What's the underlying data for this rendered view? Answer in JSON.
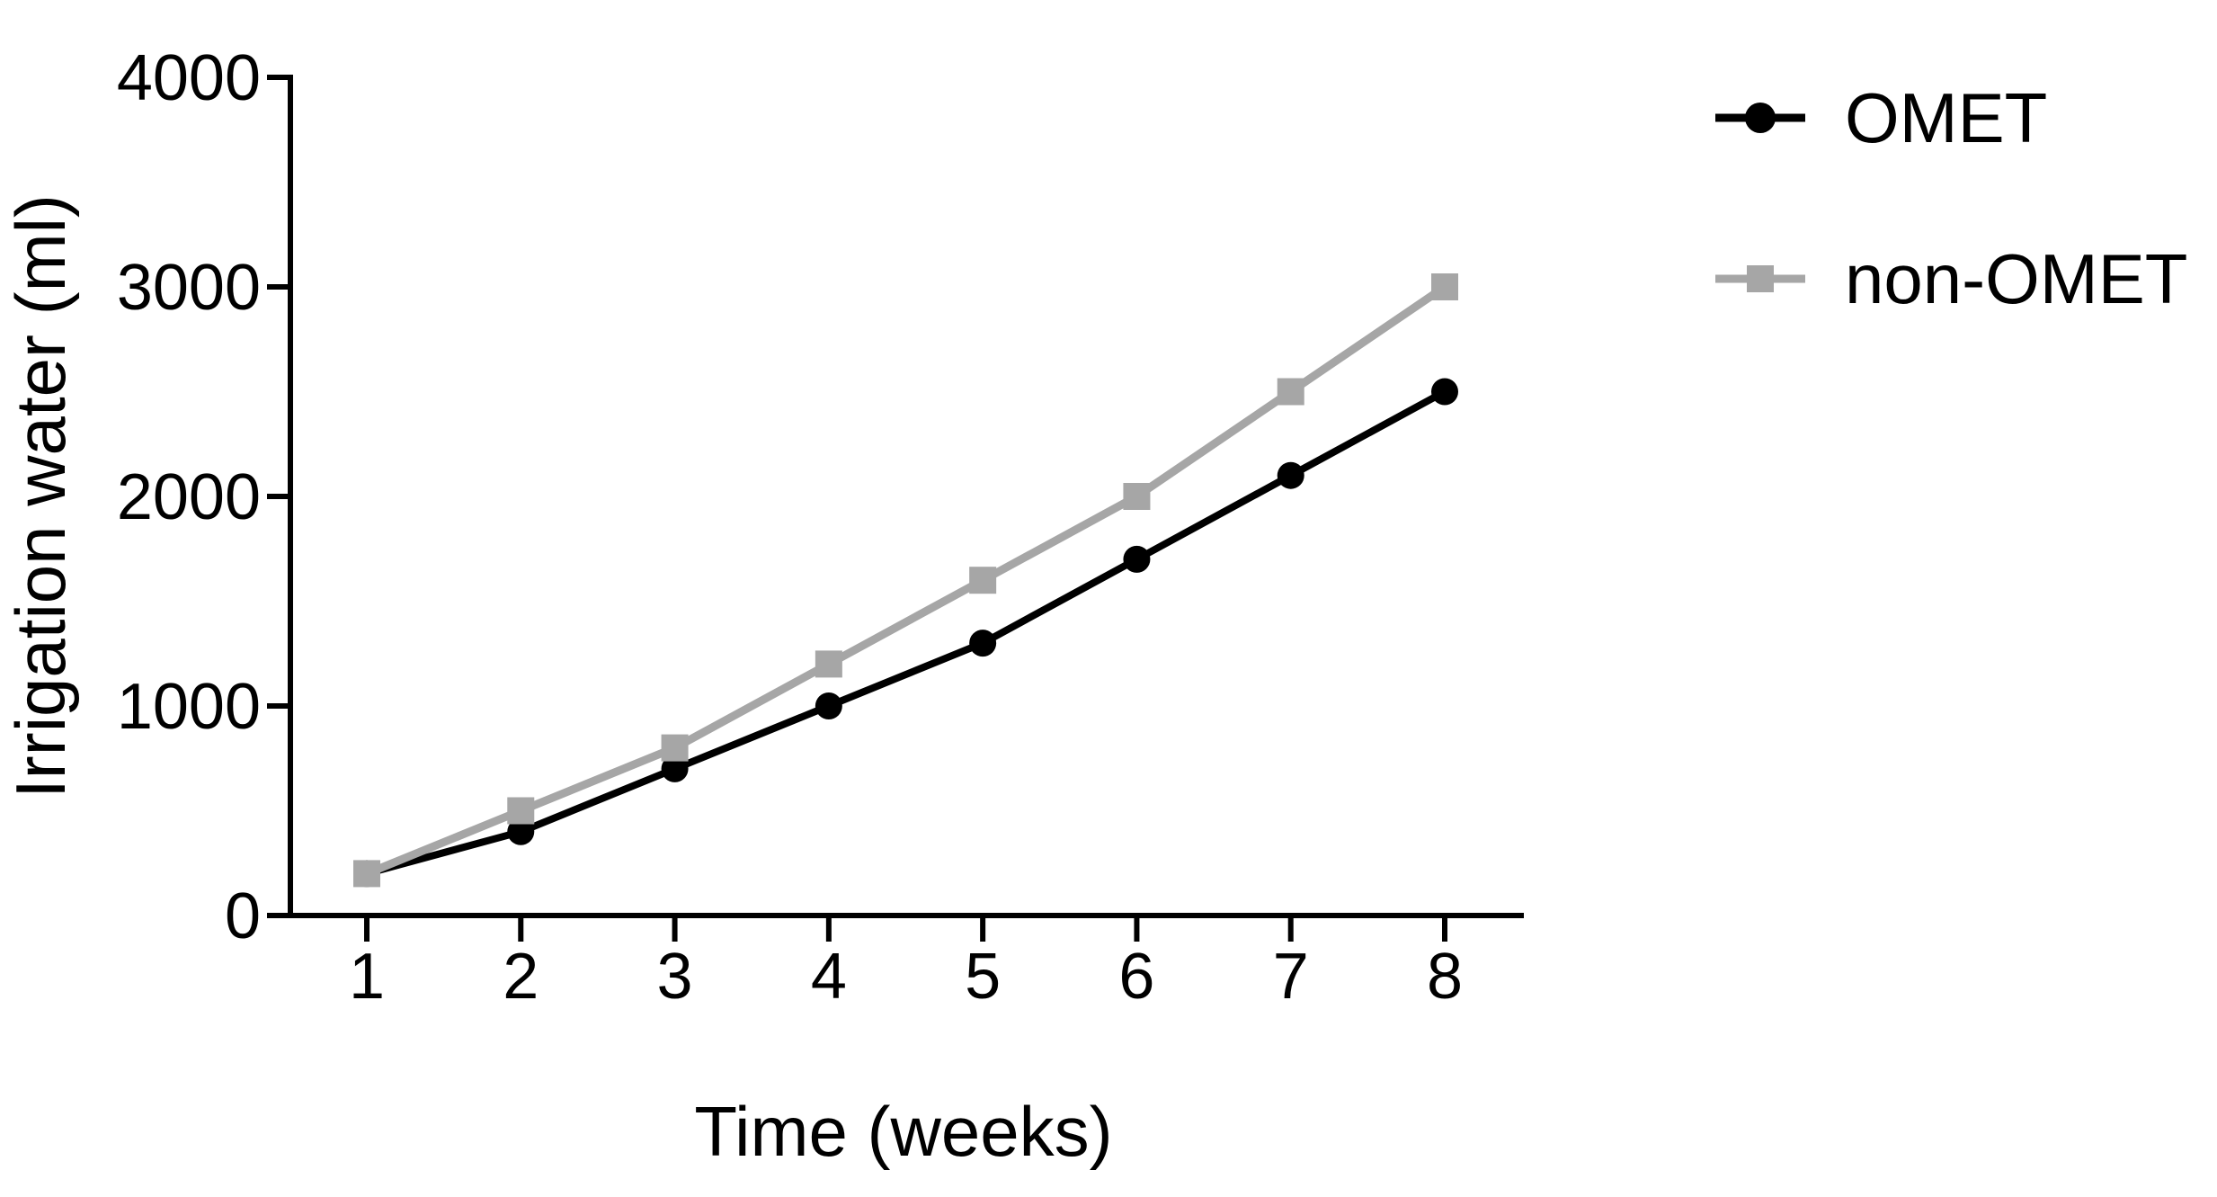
{
  "figure": {
    "background": "#ffffff",
    "text_color": "#000000"
  },
  "chart_data": {
    "type": "line",
    "title": "",
    "xlabel": "Time (weeks)",
    "ylabel": "Irrigation water (ml)",
    "x": [
      1,
      2,
      3,
      4,
      5,
      6,
      7,
      8
    ],
    "xticks": [
      1,
      2,
      3,
      4,
      5,
      6,
      7,
      8
    ],
    "yticks": [
      0,
      1000,
      2000,
      3000,
      4000
    ],
    "xlim": [
      0.5,
      8.5
    ],
    "ylim": [
      0,
      4000
    ],
    "grid": false,
    "legend_position": "right-top",
    "series": [
      {
        "name": "OMET",
        "color": "#000000",
        "marker": "circle",
        "line_width": 8,
        "values": [
          200,
          400,
          700,
          1000,
          1300,
          1700,
          2100,
          2500
        ]
      },
      {
        "name": "non-OMET",
        "color": "#a6a6a6",
        "marker": "square",
        "line_width": 9,
        "values": [
          200,
          500,
          800,
          1200,
          1600,
          2000,
          2500,
          3000
        ]
      }
    ]
  }
}
